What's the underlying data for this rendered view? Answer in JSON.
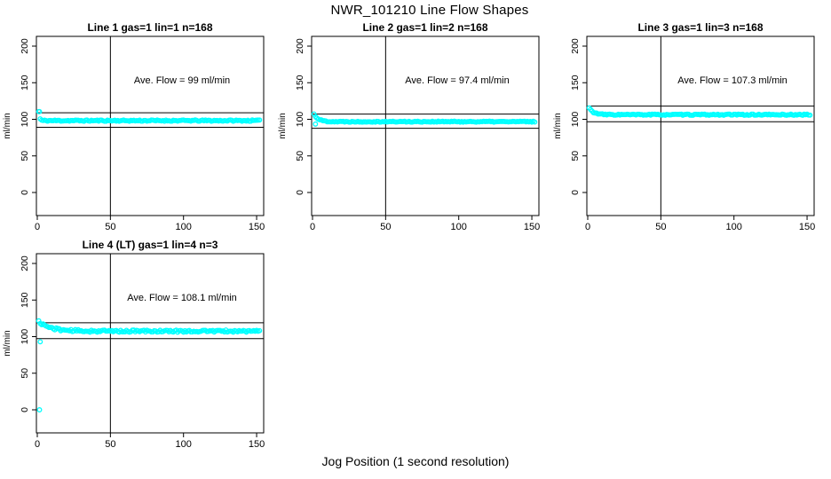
{
  "page": {
    "title": "NWR_101210  Line Flow Shapes",
    "xlabel": "Jog Position (1 second resolution)",
    "background": "#ffffff",
    "axis_color": "#000000"
  },
  "chart_data": [
    {
      "type": "scatter",
      "title": "Line 1 gas=1 lin=1 n=168",
      "ylabel": "ml/min",
      "ave_flow": 99,
      "ave_flow_label": "Ave. Flow =  99  ml/min",
      "annotation_anchor": {
        "x": 99,
        "y": 146
      },
      "point_color": "#00FFFF",
      "x_ticks": [
        0,
        50,
        100,
        150
      ],
      "y_ticks": [
        0,
        50,
        100,
        150,
        200
      ],
      "xlim": [
        -1,
        155
      ],
      "ylim": [
        -31,
        213
      ],
      "vline_x": 50,
      "hlines": [
        108.9,
        89.1
      ],
      "series_spec": {
        "n": 152,
        "x_start": 1,
        "x_step": 1,
        "start": 110.5,
        "settle": 98.2,
        "tau": 0.6,
        "noise": 0.9,
        "seed": 11
      },
      "outliers": [
        [
          1.5,
          110.5
        ]
      ]
    },
    {
      "type": "scatter",
      "title": "Line 2 gas=1 lin=2 n=168",
      "ylabel": "ml/min",
      "ave_flow": 97.4,
      "ave_flow_label": "Ave. Flow =  97.4  ml/min",
      "annotation_anchor": {
        "x": 99,
        "y": 146
      },
      "point_color": "#00FFFF",
      "x_ticks": [
        0,
        50,
        100,
        150
      ],
      "y_ticks": [
        0,
        50,
        100,
        150,
        200
      ],
      "xlim": [
        -1,
        155
      ],
      "ylim": [
        -31,
        213
      ],
      "vline_x": 50,
      "hlines": [
        107.1,
        87.7
      ],
      "series_spec": {
        "n": 152,
        "x_start": 1,
        "x_step": 1,
        "start": 107,
        "settle": 96.8,
        "tau": 3,
        "noise": 0.7,
        "seed": 22
      },
      "outliers": [
        [
          2,
          93.5
        ]
      ]
    },
    {
      "type": "scatter",
      "title": "Line 3 gas=1 lin=3 n=168",
      "ylabel": "ml/min",
      "ave_flow": 107.3,
      "ave_flow_label": "Ave. Flow =  107.3  ml/min",
      "annotation_anchor": {
        "x": 99,
        "y": 146
      },
      "point_color": "#00FFFF",
      "x_ticks": [
        0,
        50,
        100,
        150
      ],
      "y_ticks": [
        0,
        50,
        100,
        150,
        200
      ],
      "xlim": [
        -1,
        155
      ],
      "ylim": [
        -31,
        213
      ],
      "vline_x": 50,
      "hlines": [
        118.0,
        96.6
      ],
      "series_spec": {
        "n": 152,
        "x_start": 1,
        "x_step": 1,
        "start": 115.5,
        "settle": 106.3,
        "tau": 3,
        "noise": 0.8,
        "seed": 33
      },
      "outliers": []
    },
    {
      "type": "scatter",
      "title": "Line 4 (LT) gas=1 lin=4 n=3",
      "ylabel": "ml/min",
      "ave_flow": 108.1,
      "ave_flow_label": "Ave. Flow =  108.1  ml/min",
      "annotation_anchor": {
        "x": 99,
        "y": 146
      },
      "point_color": "#00FFFF",
      "x_ticks": [
        0,
        50,
        100,
        150
      ],
      "y_ticks": [
        0,
        50,
        100,
        150,
        200
      ],
      "xlim": [
        -1,
        155
      ],
      "ylim": [
        -31,
        213
      ],
      "vline_x": 50,
      "hlines": [
        118.9,
        97.3
      ],
      "series_spec": {
        "n": 152,
        "x_start": 1,
        "x_step": 1,
        "start": 120.5,
        "settle": 107.5,
        "tau": 8,
        "noise": 1.5,
        "seed": 44
      },
      "outliers": [
        [
          1.5,
          0
        ],
        [
          2,
          93
        ]
      ]
    }
  ]
}
